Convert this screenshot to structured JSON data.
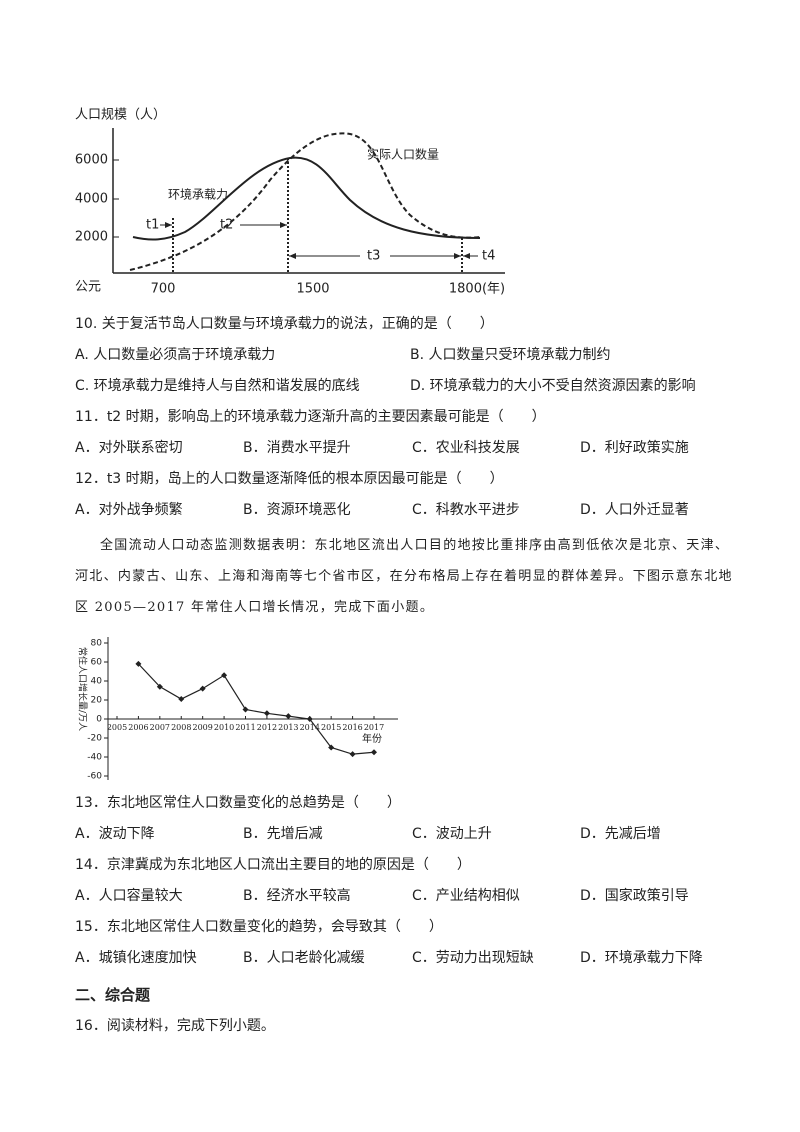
{
  "figure1": {
    "y_label": "人口规模（人）",
    "yticks": [
      6000,
      4000,
      2000
    ],
    "x_origin": "公元",
    "xticks": [
      700,
      1500,
      {
        "value": 1800,
        "label": "1800(年)"
      }
    ],
    "curve_labels": [
      "实际人口数量",
      "环境承载力"
    ],
    "periods": [
      "t1",
      "t2",
      "t3",
      "t4"
    ]
  },
  "questions_a": [
    {
      "stem": "10. 关于复活节岛人口数量与环境承载力的说法，正确的是（　　）",
      "options": [
        "A. 人口数量必须高于环境承载力",
        "B. 人口数量只受环境承载力制约",
        "C. 环境承载力是维持人与自然和谐发展的底线",
        "D. 环境承载力的大小不受自然资源因素的影响"
      ]
    },
    {
      "stem": "11．t2 时期，影响岛上的环境承载力逐渐升高的主要因素最可能是（　　）",
      "options": [
        "A．对外联系密切",
        "B．消费水平提升",
        "C．农业科技发展",
        "D．利好政策实施"
      ]
    },
    {
      "stem": "12．t3 时期，岛上的人口数量逐渐降低的根本原因最可能是（　　）",
      "options": [
        "A．对外战争频繁",
        "B．资源环境恶化",
        "C．科教水平进步",
        "D．人口外迁显著"
      ]
    }
  ],
  "paragraph": [
    "全国流动人口动态监测数据表明：东北地区流出人口目的地按比重排序由高到低依次是北京、天津、",
    "河北、内蒙古、山东、上海和海南等七个省市区，在分布格局上存在着明显的群体差异。下图示意东北地",
    "区 2005—2017 年常住人口增长情况，完成下面小题。"
  ],
  "chart_data": {
    "type": "line",
    "y_label": "常住人口增长量/万人",
    "x_label": "年份",
    "x": [
      2006,
      2007,
      2008,
      2009,
      2010,
      2011,
      2012,
      2013,
      2014,
      2015,
      2016,
      2017
    ],
    "values": [
      58,
      34,
      21,
      32,
      46,
      10,
      6,
      3,
      0,
      -30,
      -37,
      -35
    ],
    "color": "#222222",
    "xlim": [
      2005,
      2017
    ],
    "xticks": [
      2005,
      2006,
      2007,
      2008,
      2009,
      2010,
      2011,
      2012,
      2013,
      2014,
      2015,
      2016,
      2017
    ],
    "ylim": [
      -60,
      80
    ],
    "yticks": [
      80,
      60,
      40,
      20,
      0,
      -20,
      -40,
      -60
    ]
  },
  "questions_b": [
    {
      "stem": "13．东北地区常住人口数量变化的总趋势是（　　）",
      "options": [
        "A．波动下降",
        "B．先增后减",
        "C．波动上升",
        "D．先减后增"
      ]
    },
    {
      "stem": "14．京津冀成为东北地区人口流出主要目的地的原因是（　　）",
      "options": [
        "A．人口容量较大",
        "B．经济水平较高",
        "C．产业结构相似",
        "D．国家政策引导"
      ]
    },
    {
      "stem": "15．东北地区常住人口数量变化的趋势，会导致其（　　）",
      "options": [
        "A．城镇化速度加快",
        "B．人口老龄化减缓",
        "C．劳动力出现短缺",
        "D．环境承载力下降"
      ]
    }
  ],
  "section": "二、综合题",
  "q16": "16．阅读材料，完成下列小题。"
}
